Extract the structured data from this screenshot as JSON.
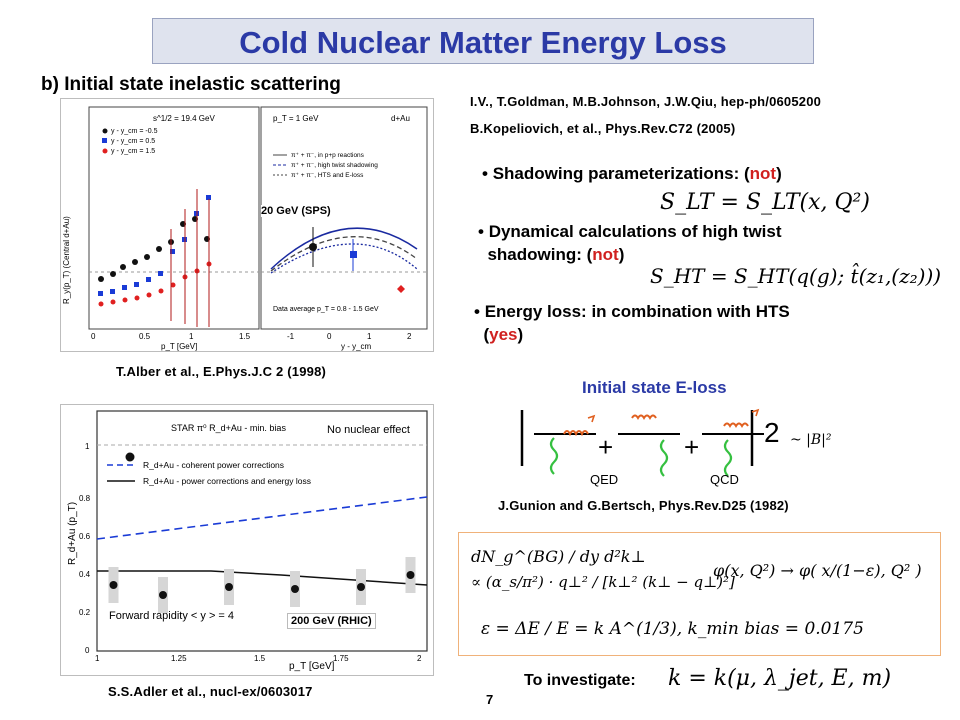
{
  "title": "Cold Nuclear Matter Energy Loss",
  "subtitle": "b) Initial state inelastic scattering",
  "refs": {
    "ivitev": "I.V., T.Goldman, M.B.Johnson, J.W.Qiu, hep-ph/0605200",
    "kopeliovich": "B.Kopeliovich, et al., Phys.Rev.C72 (2005)",
    "alber": "T.Alber et al., E.Phys.J.C 2 (1998)",
    "adler": "S.S.Adler et al., nucl-ex/0603017",
    "gunion": "J.Gunion and G.Bertsch, Phys.Rev.D25 (1982)"
  },
  "bullets": [
    {
      "text": "Shadowing parameterizations: (",
      "highlight": "not",
      "close": ")"
    },
    {
      "text": "Dynamical calculations of high twist",
      "text2": "shadowing: (",
      "highlight": "not",
      "close": ")"
    },
    {
      "text": "Energy loss: in combination with HTS",
      "text2": "(",
      "highlight": "yes",
      "close": ")"
    }
  ],
  "equations": {
    "slt": "S_LT = S_LT(x, Q²)",
    "sht": "S_HT = S_HT(q(g); t̂(z₁,(z₂)))",
    "dn_lhs": "dN_g^(BG) / dy d²k⊥",
    "dn_rhs": "∝ (α_s/π²) · q⊥² / [k⊥² (k⊥ − q⊥)²]",
    "phi": "φ(x, Q²) → φ( x/(1−ε), Q² )",
    "eps": "ε = ΔE / E = k A^(1/3),   k_min bias = 0.0175",
    "investigate_eq": "k = k(μ, λ_jet, E, m)"
  },
  "diagram": {
    "title": "Initial state E-loss",
    "plus": "+",
    "qed": "QED",
    "qcd": "QCD",
    "square": "2",
    "matrix": "~ |B|²"
  },
  "investigate_label": "To investigate:",
  "page_number": "7",
  "plot_top": {
    "energy_label": "20 GeV (SPS)",
    "left_header": "s^1/2 = 19.4 GeV",
    "right_header_l": "p_T = 1 GeV",
    "right_header_r": "d+Au",
    "legend": [
      "y - y_cm = -0.5",
      "y - y_cm = 0.5",
      "y - y_cm = 1.5"
    ],
    "legend_right": [
      "π⁺ + π⁻, in p+p reactions",
      "π⁺ + π⁻, high twist shadowing",
      "π⁺ + π⁻, HTS and E-loss"
    ],
    "ylabel": "R_y(p_T) (Central d+Au)",
    "xlabel_left": "p_T [GeV]",
    "xlabel_right": "y - y_cm",
    "bottom_note": "Data average  p_T = 0.8 - 1.5 GeV",
    "x_ticks_left": [
      "0",
      "0.5",
      "1",
      "1.5"
    ],
    "x_ticks_right": [
      "-1",
      "0",
      "1",
      "2"
    ]
  },
  "plot_bottom": {
    "energy_label": "200 GeV (RHIC)",
    "header": "STAR π⁰ R_d+Au - min. bias",
    "no_effect": "No nuclear effect",
    "legend": [
      "R_d+Au - coherent power corrections",
      "R_d+Au - power corrections and energy loss"
    ],
    "forward": "Forward rapidity < y > = 4",
    "ylabel": "R_d+Au (p_T)",
    "xlabel": "p_T [GeV]",
    "y_ticks": [
      "0",
      "0.2",
      "0.4",
      "0.6",
      "0.8",
      "1"
    ],
    "x_ticks": [
      "1",
      "1.25",
      "1.5",
      "1.75",
      "2"
    ],
    "chart_data": {
      "type": "scatter",
      "x": [
        1.05,
        1.2,
        1.4,
        1.6,
        1.8,
        1.95
      ],
      "y": [
        0.33,
        0.28,
        0.32,
        0.31,
        0.32,
        0.38
      ],
      "star_point": {
        "x": 1.1,
        "y": 0.97
      },
      "xlim": [
        1,
        2
      ],
      "ylim": [
        0,
        1.2
      ]
    }
  }
}
